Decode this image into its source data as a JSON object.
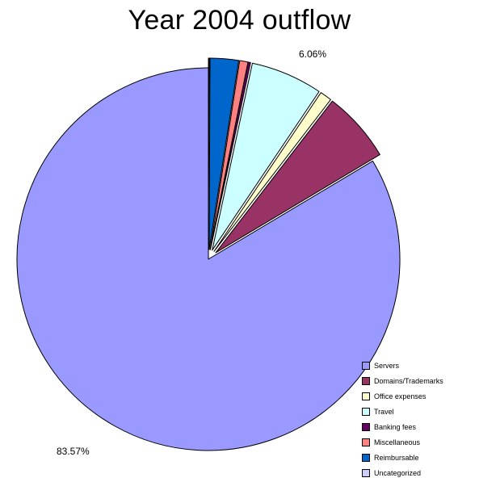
{
  "chart_data": {
    "type": "pie",
    "title": "Year 2004 outflow",
    "slices": [
      {
        "name": "Servers",
        "value": 83.57,
        "color": "#9999ff",
        "exploded": false,
        "label": "83.57%"
      },
      {
        "name": "Domains/Trademarks",
        "value": 6.0,
        "color": "#993366",
        "exploded": true,
        "label": ""
      },
      {
        "name": "Office expenses",
        "value": 1.0,
        "color": "#ffffcc",
        "exploded": true,
        "label": ""
      },
      {
        "name": "Travel",
        "value": 6.06,
        "color": "#ccffff",
        "exploded": true,
        "label": "6.06%"
      },
      {
        "name": "Banking fees",
        "value": 0.2,
        "color": "#660066",
        "exploded": true,
        "label": ""
      },
      {
        "name": "Miscellaneous",
        "value": 0.7,
        "color": "#ff8080",
        "exploded": true,
        "label": ""
      },
      {
        "name": "Reimbursable",
        "value": 2.4,
        "color": "#0066cc",
        "exploded": true,
        "label": ""
      },
      {
        "name": "Uncategorized",
        "value": 0.07,
        "color": "#ccccff",
        "exploded": true,
        "label": ""
      }
    ],
    "legend": {
      "position": "bottom-right",
      "entries": [
        "Servers",
        "Domains/Trademarks",
        "Office expenses",
        "Travel",
        "Banking fees",
        "Miscellaneous",
        "Reimbursable",
        "Uncategorized"
      ]
    }
  }
}
